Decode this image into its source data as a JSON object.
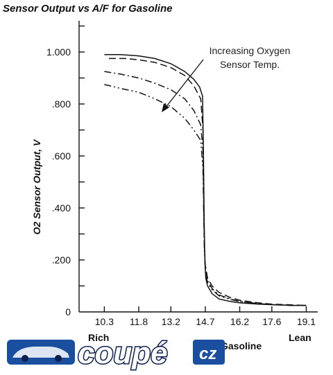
{
  "chart_data": {
    "type": "line",
    "title": "Sensor Output vs A/F for Gasoline",
    "ylabel": "O2 Sensor Output, V",
    "xlabel": "Gasoline",
    "x_tick_labels": [
      "10.3",
      "11.8",
      "13.2",
      "14.7",
      "16.2",
      "17.6",
      "19.1"
    ],
    "y_tick_labels": [
      ".200",
      ".400",
      ".600",
      ".800",
      "1.000"
    ],
    "y_zero_label": "0",
    "xlim": [
      9.2,
      19.6
    ],
    "ylim": [
      0,
      1.12
    ],
    "x_end_labels": {
      "left": "Rich",
      "right": "Lean"
    },
    "annotation": "Increasing Oxygen\nSensor Temp.",
    "grid": false,
    "series": [
      {
        "style": "solid",
        "x": [
          10.3,
          11.0,
          11.8,
          12.5,
          13.2,
          13.8,
          14.2,
          14.45,
          14.58,
          14.62,
          14.65,
          14.68,
          14.72,
          14.8,
          15.0,
          15.3,
          15.8,
          16.2,
          17.0,
          17.6,
          18.5,
          19.1
        ],
        "y": [
          0.99,
          0.99,
          0.985,
          0.975,
          0.955,
          0.925,
          0.895,
          0.865,
          0.83,
          0.6,
          0.35,
          0.2,
          0.13,
          0.1,
          0.07,
          0.05,
          0.04,
          0.035,
          0.03,
          0.028,
          0.025,
          0.025
        ]
      },
      {
        "style": "dash",
        "x": [
          10.5,
          11.2,
          11.8,
          12.5,
          13.2,
          13.8,
          14.2,
          14.5,
          14.6,
          14.63,
          14.66,
          14.7,
          14.8,
          15.0,
          15.3,
          15.8,
          16.2,
          17.0,
          17.6,
          18.5,
          19.1
        ],
        "y": [
          0.975,
          0.975,
          0.97,
          0.96,
          0.94,
          0.91,
          0.87,
          0.82,
          0.7,
          0.45,
          0.26,
          0.18,
          0.13,
          0.1,
          0.075,
          0.055,
          0.045,
          0.035,
          0.03,
          0.027,
          0.025
        ]
      },
      {
        "style": "dashdot",
        "x": [
          10.3,
          11.0,
          11.8,
          12.5,
          13.2,
          13.8,
          14.2,
          14.5,
          14.6,
          14.63,
          14.66,
          14.7,
          14.8,
          15.0,
          15.3,
          15.8,
          16.2,
          17.0,
          17.6,
          18.5,
          19.1
        ],
        "y": [
          0.925,
          0.915,
          0.9,
          0.88,
          0.855,
          0.82,
          0.775,
          0.72,
          0.62,
          0.42,
          0.25,
          0.17,
          0.12,
          0.09,
          0.065,
          0.05,
          0.04,
          0.032,
          0.028,
          0.025,
          0.025
        ]
      },
      {
        "style": "dashdotdot",
        "x": [
          10.3,
          11.0,
          11.8,
          12.5,
          13.2,
          13.8,
          14.2,
          14.5,
          14.6,
          14.63,
          14.66,
          14.7,
          14.8,
          15.0,
          15.3,
          15.8,
          16.2,
          17.0,
          17.6,
          18.5,
          19.1
        ],
        "y": [
          0.875,
          0.86,
          0.845,
          0.82,
          0.79,
          0.745,
          0.7,
          0.66,
          0.55,
          0.38,
          0.24,
          0.16,
          0.11,
          0.085,
          0.062,
          0.048,
          0.04,
          0.032,
          0.028,
          0.025,
          0.025
        ]
      }
    ]
  },
  "watermark": {
    "text": "coupé",
    "suffix": "cz",
    "colors": {
      "blue": "#1a4fa0",
      "dark": "#0b1f4a",
      "white": "#ffffff"
    }
  }
}
